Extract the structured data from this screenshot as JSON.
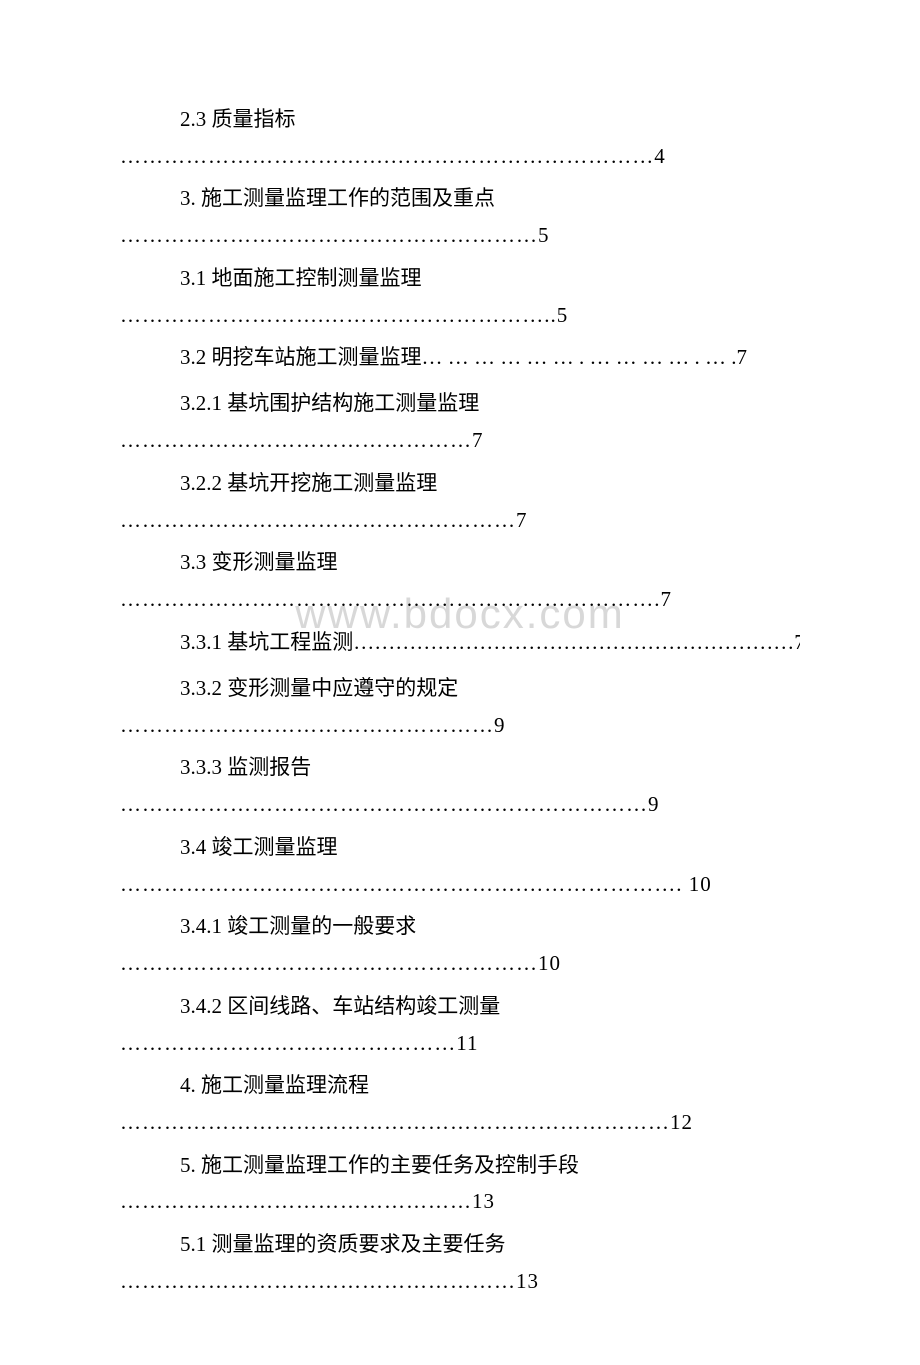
{
  "watermark_text": "www.bdocx.com",
  "watermark_color": "#d8d8d8",
  "text_color": "#000000",
  "background_color": "#ffffff",
  "font_size_main": 21,
  "toc": [
    {
      "title": "2.3 质量指标",
      "leader": "……………………………….………………………………4",
      "single_line": false
    },
    {
      "title": "3. 施工测量监理工作的范围及重点",
      "leader": "…………………………………………………5",
      "single_line": false
    },
    {
      "title": "3.1 地面施工控制测量监理",
      "leader": "……………………….…………………………..5",
      "single_line": false
    },
    {
      "title": "3.2 明挖车站施工测量监理… … … … … … . … … … … . … .7",
      "leader": "",
      "single_line": true
    },
    {
      "title": "3.2.1 基坑围护结构施工测量监理",
      "leader": "…………………………………………7",
      "single_line": false
    },
    {
      "title": "3.2.2 基坑开挖施工测量监理",
      "leader": "………………………………………………7",
      "single_line": false
    },
    {
      "title": "3.3 变形测量监理",
      "leader": "…………………………………….………………………….7",
      "single_line": false
    },
    {
      "title": "3.3.1 基坑工程监测………………………………………………………7",
      "leader": "",
      "single_line": true
    },
    {
      "title": "3.3.2 变形测量中应遵守的规定",
      "leader": "……………………………………………9",
      "single_line": false
    },
    {
      "title": "3.3.3 监测报告",
      "leader": "………………………………………………………………9",
      "single_line": false
    },
    {
      "title": "3.4 竣工测量监理",
      "leader": "……………………………………………….…………………. 10",
      "single_line": false
    },
    {
      "title": "3.4.1 竣工测量的一般要求",
      "leader": "…………………………………………………10",
      "single_line": false
    },
    {
      "title": "3.4.2 区间线路、车站结构竣工测量",
      "leader": "……………………….………………11",
      "single_line": false
    },
    {
      "title": "4. 施工测量监理流程",
      "leader": "…………………………………………………………………12",
      "single_line": false
    },
    {
      "title": "5. 施工测量监理工作的主要任务及控制手段",
      "leader": "…………………………………………13",
      "single_line": false
    },
    {
      "title": "5.1 测量监理的资质要求及主要任务",
      "leader": "………………………………………………13",
      "single_line": false
    }
  ]
}
